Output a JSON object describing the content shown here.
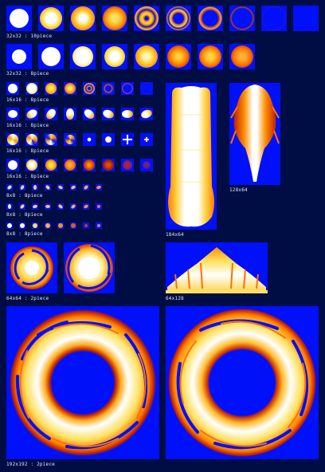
{
  "labels": {
    "l1": "32x32 : 10piece",
    "l2": "32x32 : 8piece",
    "l3": "16x16 : 8piece",
    "l4": "16x16 : 8piece",
    "l5": "16x16 : 8piece",
    "l6": "16x16 : 8piece",
    "l7": "8x8 : 8piece",
    "l8": "8x8 : 8piece",
    "l9": "8x8 : 8piece",
    "l10": "64x64 : 2piece",
    "l11": "192x192 : 2piece",
    "l12": "184x64",
    "l13": "128x64",
    "l14": "64x128"
  },
  "colors": {
    "page": "#000d44",
    "tile": "#0010f8",
    "white": "#ffffff",
    "yellow": "#ffe040",
    "orange": "#ff9000",
    "red": "#c02000",
    "label": "#dfe6ff"
  },
  "icons": [
    "explosion-frame",
    "fire-swirl-ring",
    "flame-column",
    "flame-plume",
    "flame-crown"
  ]
}
